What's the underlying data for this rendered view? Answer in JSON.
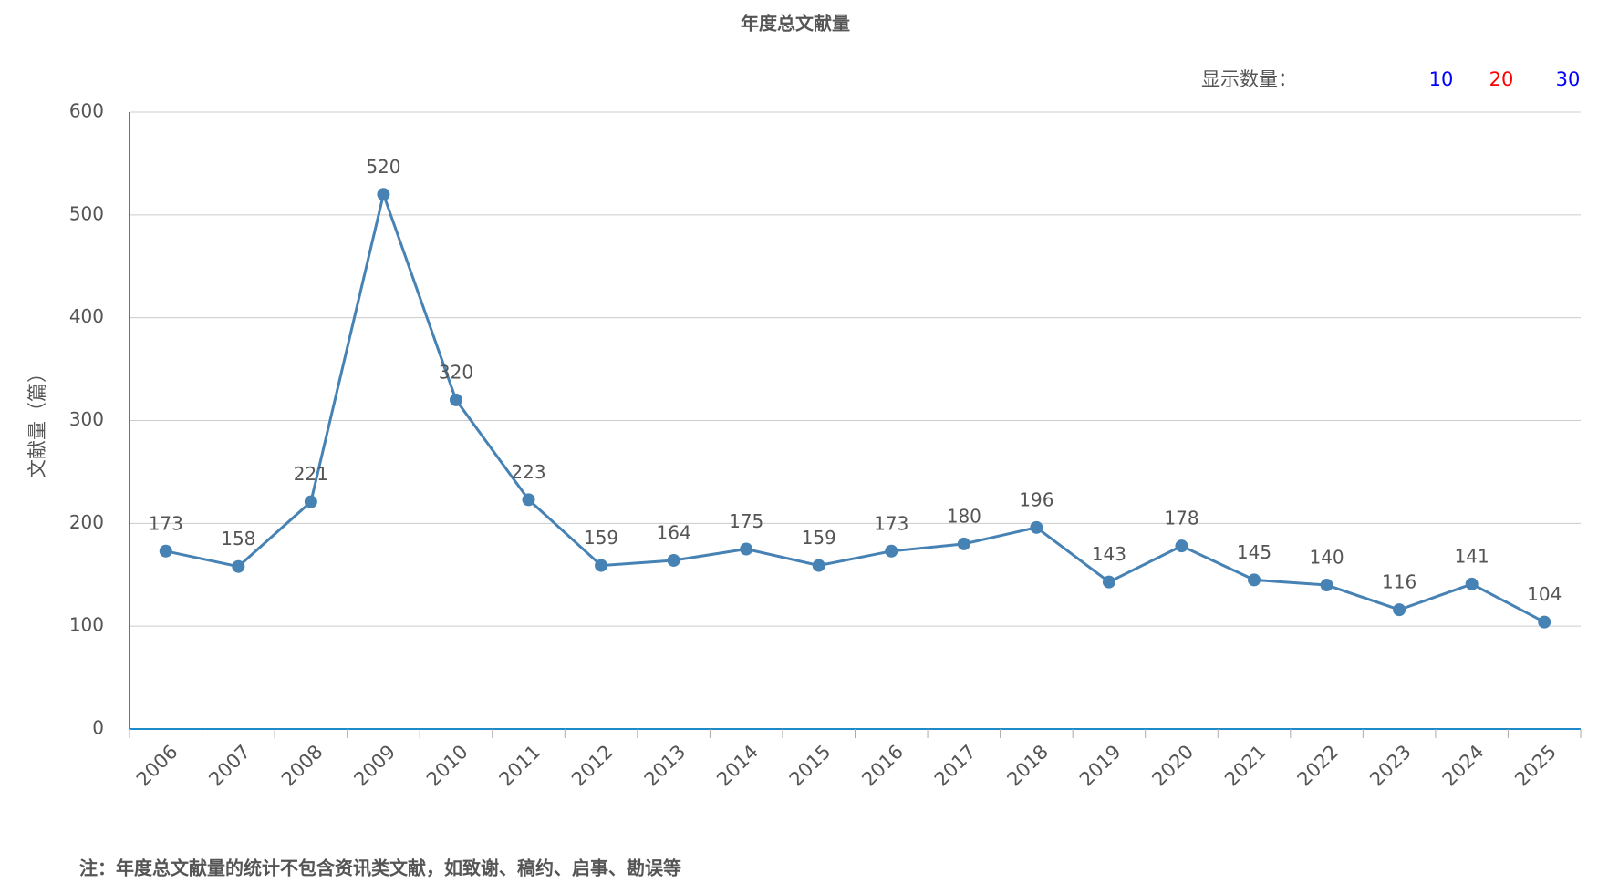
{
  "chart_data": {
    "type": "line",
    "title": "年度总文献量",
    "y_label": "文献量（篇）",
    "categories": [
      "2006",
      "2007",
      "2008",
      "2009",
      "2010",
      "2011",
      "2012",
      "2013",
      "2014",
      "2015",
      "2016",
      "2017",
      "2018",
      "2019",
      "2020",
      "2021",
      "2022",
      "2023",
      "2024",
      "2025"
    ],
    "values": [
      173,
      158,
      221,
      520,
      320,
      223,
      159,
      164,
      175,
      159,
      173,
      180,
      196,
      143,
      178,
      145,
      140,
      116,
      141,
      104
    ],
    "color": "#4682b4",
    "axis_color": "#1f8ac9",
    "ylim": [
      0,
      600
    ],
    "yticks": [
      0,
      100,
      200,
      300,
      400,
      500,
      600
    ],
    "grid": true,
    "note": "注：年度总文献量的统计不包含资讯类文献，如致谢、稿约、启事、勘误等",
    "display_count": {
      "label": "显示数量：",
      "options": [
        {
          "text": "10",
          "color": "#0000ff"
        },
        {
          "text": "20",
          "color": "#ff0000"
        },
        {
          "text": "30",
          "color": "#0000ff"
        }
      ]
    }
  }
}
